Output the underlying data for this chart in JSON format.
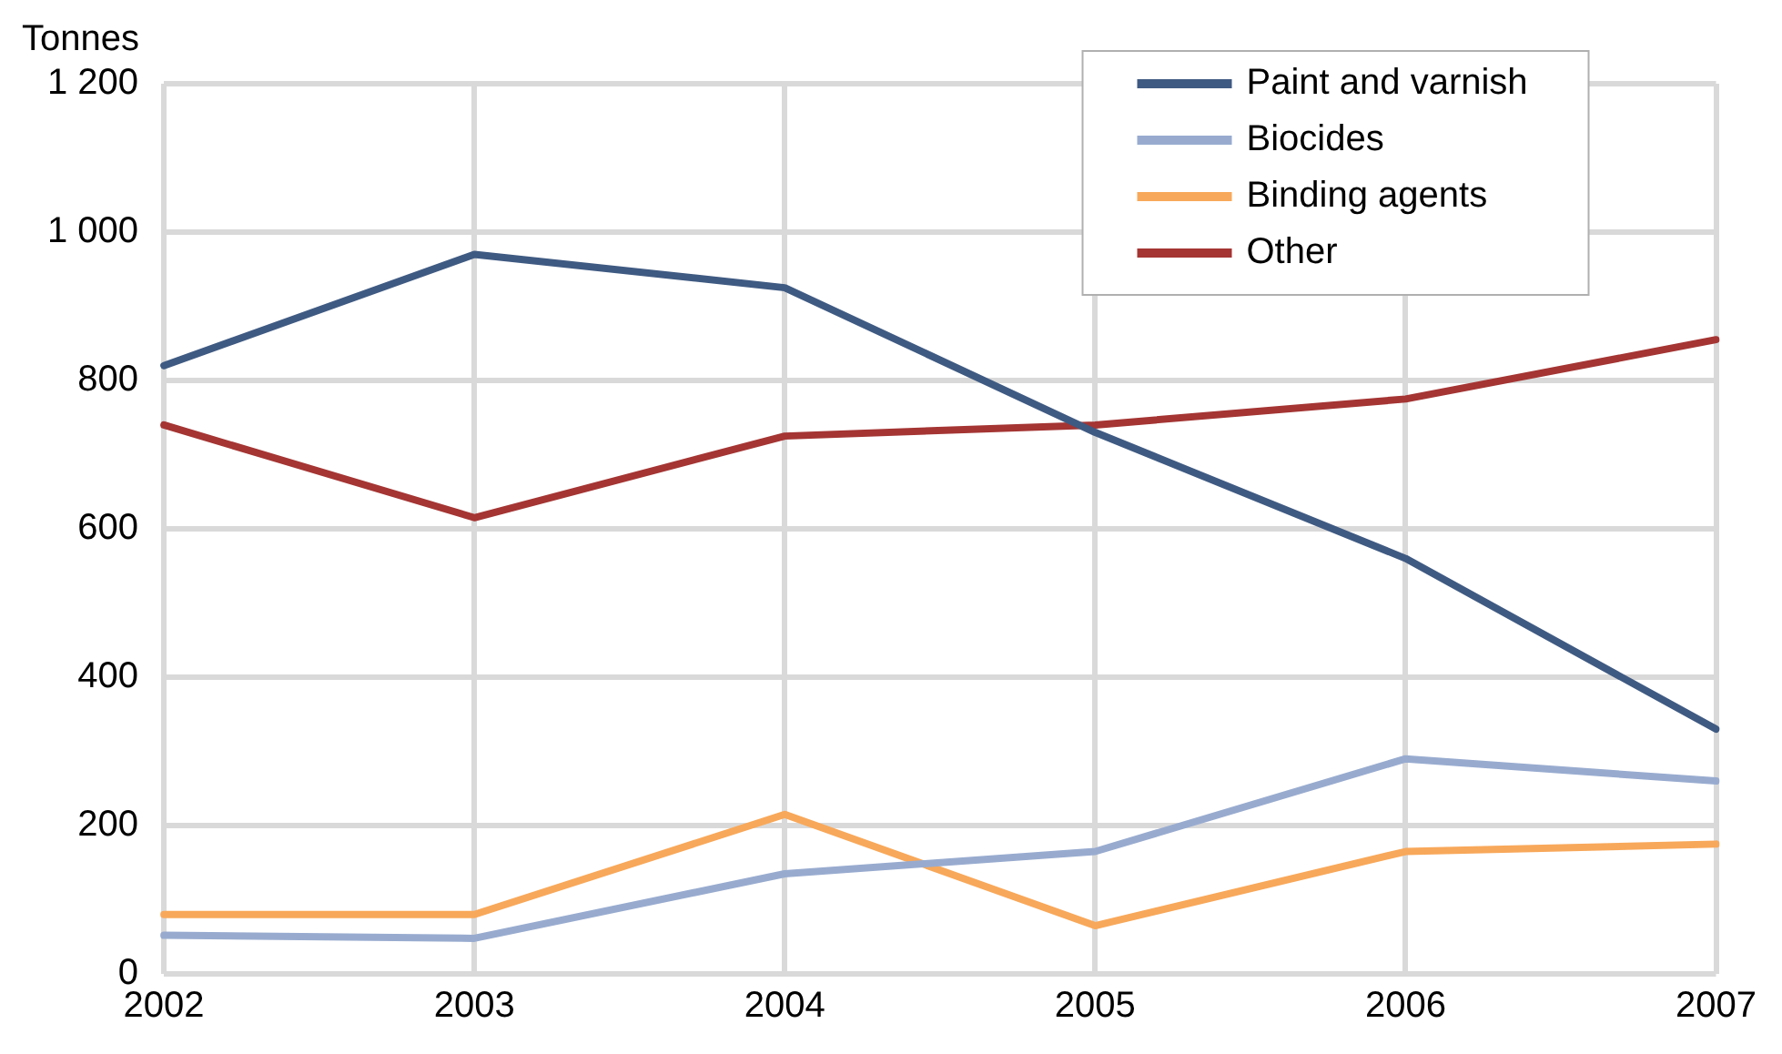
{
  "chart_data": {
    "type": "line",
    "ylabel": "Tonnes",
    "categories": [
      "2002",
      "2003",
      "2004",
      "2005",
      "2006",
      "2007"
    ],
    "series": [
      {
        "name": "Paint and varnish",
        "color": "#3f5a82",
        "values": [
          820,
          970,
          925,
          730,
          560,
          330
        ]
      },
      {
        "name": "Biocides",
        "color": "#98abcf",
        "values": [
          52,
          48,
          135,
          165,
          290,
          260
        ]
      },
      {
        "name": "Binding agents",
        "color": "#f8a85a",
        "values": [
          80,
          80,
          215,
          65,
          165,
          175
        ]
      },
      {
        "name": "Other",
        "color": "#a43533",
        "values": [
          740,
          615,
          725,
          740,
          775,
          855
        ]
      }
    ],
    "ylim": [
      0,
      1200
    ],
    "yticks": [
      0,
      200,
      400,
      600,
      800,
      {
        "value": 1000,
        "label": "1 000"
      },
      {
        "value": 1200,
        "label": "1 200"
      }
    ],
    "grid": true,
    "legend": "top right",
    "marker": "none",
    "line_style": "solid"
  }
}
